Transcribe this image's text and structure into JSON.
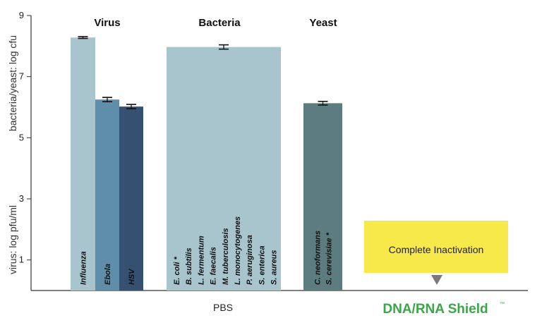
{
  "chart_data": {
    "type": "bar",
    "ylabel_top": "bacteria/yeast: log cfu",
    "ylabel_bottom": "virus: log pfu/ml",
    "ylim": [
      0,
      9
    ],
    "yticks": [
      "1",
      "3",
      "5",
      "7",
      "9"
    ],
    "groups": [
      {
        "header": "Virus",
        "bars": [
          {
            "labels": [
              "Influenza"
            ],
            "value": 8.28,
            "error": 0.03,
            "color": "#a8c5ce"
          },
          {
            "labels": [
              "Ebola"
            ],
            "value": 6.25,
            "error": 0.07,
            "color": "#5f8eaa"
          },
          {
            "labels": [
              "HSV"
            ],
            "value": 6.02,
            "error": 0.07,
            "color": "#355070"
          }
        ]
      },
      {
        "header": "Bacteria",
        "bars": [
          {
            "labels": [
              "E. coli *",
              "B. subtilis",
              "L. fermentum",
              "E. faecalis",
              "M. tuberculosis",
              "L. monocytogenes",
              "P. aeruginosa",
              "S. enterica",
              "S. aureus"
            ],
            "value": 7.97,
            "error": 0.07,
            "color": "#a8c5ce"
          }
        ]
      },
      {
        "header": "Yeast",
        "bars": [
          {
            "labels": [
              "C. neoformans",
              "S. cerevisiae *"
            ],
            "value": 6.13,
            "error": 0.06,
            "color": "#5c7c80"
          }
        ]
      }
    ],
    "x_categories": [
      "PBS",
      "DNA/RNA Shield"
    ],
    "trademark": "™",
    "annotation": "Complete Inactivation",
    "colors": {
      "shield_green": "#3aa648",
      "annotation_bg": "#f7e94a",
      "arrow": "#7a7a7a"
    }
  }
}
